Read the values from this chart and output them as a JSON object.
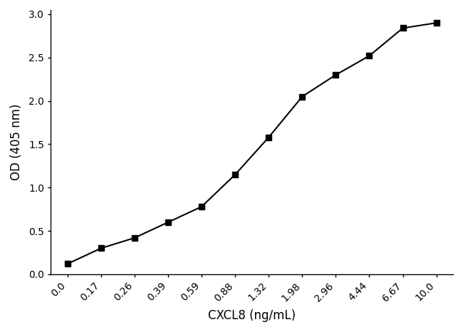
{
  "x_positions": [
    0,
    1,
    2,
    3,
    4,
    5,
    6,
    7,
    8,
    9,
    10,
    11
  ],
  "x_tick_labels": [
    "0.0",
    "0.17",
    "0.26",
    "0.39",
    "0.59",
    "0.88",
    "1.32",
    "1.98",
    "2.96",
    "4.44",
    "6.67",
    "10.0"
  ],
  "y_values": [
    0.12,
    0.3,
    0.42,
    0.6,
    0.78,
    1.15,
    1.58,
    2.05,
    2.3,
    2.52,
    2.84,
    2.9
  ],
  "xlabel": "CXCL8 (ng/mL)",
  "ylabel": "OD (405 nm)",
  "ylim": [
    0.0,
    3.05
  ],
  "yticks": [
    0.0,
    0.5,
    1.0,
    1.5,
    2.0,
    2.5,
    3.0
  ],
  "line_color": "#000000",
  "marker": "s",
  "marker_size": 6,
  "marker_facecolor": "#000000",
  "line_width": 1.5,
  "background_color": "#ffffff",
  "xlabel_fontsize": 12,
  "ylabel_fontsize": 12,
  "tick_fontsize": 10
}
